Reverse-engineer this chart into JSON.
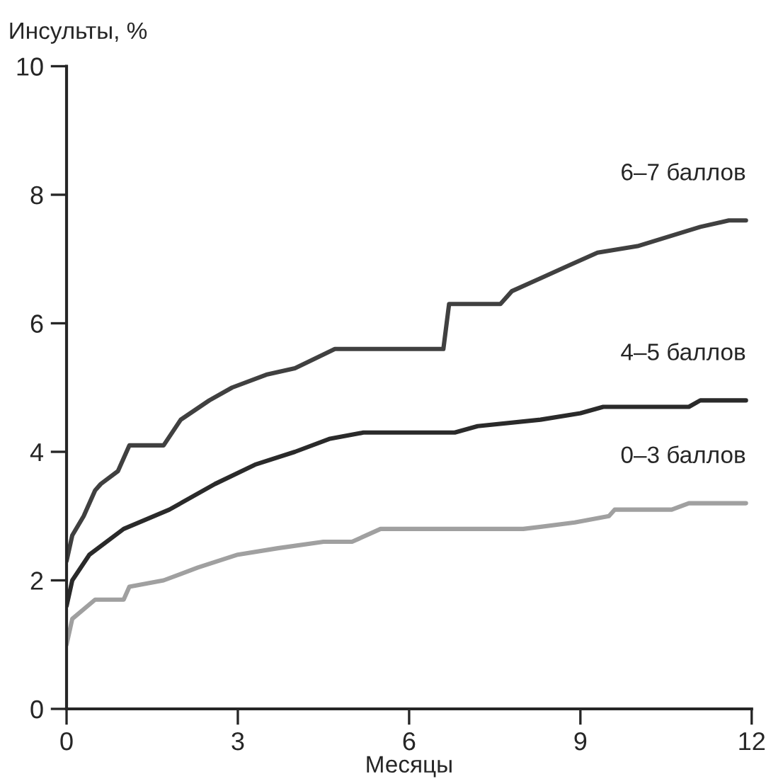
{
  "chart_data": {
    "type": "line",
    "ylabel": "Инсульты, %",
    "xlabel": "Месяцы",
    "xlim": [
      0,
      12
    ],
    "xticks": [
      0,
      3,
      6,
      9,
      12
    ],
    "ylim": [
      0,
      10
    ],
    "yticks": [
      0,
      2,
      4,
      6,
      8,
      10
    ],
    "grid": false,
    "legend": false,
    "marker": "none",
    "line_style": "solid",
    "series": [
      {
        "name": "6–7 баллов",
        "color": "#404040",
        "x": [
          0,
          0.1,
          0.3,
          0.5,
          0.6,
          0.9,
          1.1,
          1.7,
          2.0,
          2.5,
          2.9,
          3.5,
          4.0,
          4.7,
          6.6,
          6.7,
          7.6,
          7.8,
          8.3,
          8.8,
          9.3,
          10.0,
          11.1,
          11.6,
          11.9
        ],
        "values": [
          2.3,
          2.7,
          3.0,
          3.4,
          3.5,
          3.7,
          4.1,
          4.1,
          4.5,
          4.8,
          5.0,
          5.2,
          5.3,
          5.6,
          5.6,
          6.3,
          6.3,
          6.5,
          6.7,
          6.9,
          7.1,
          7.2,
          7.5,
          7.6,
          7.6
        ]
      },
      {
        "name": "4–5 баллов",
        "color": "#2a2a2a",
        "x": [
          0,
          0.1,
          0.4,
          1.0,
          1.8,
          2.6,
          3.3,
          4.0,
          4.6,
          5.2,
          6.8,
          7.2,
          8.3,
          9.0,
          9.4,
          10.9,
          11.1,
          11.9
        ],
        "values": [
          1.6,
          2.0,
          2.4,
          2.8,
          3.1,
          3.5,
          3.8,
          4.0,
          4.2,
          4.3,
          4.3,
          4.4,
          4.5,
          4.6,
          4.7,
          4.7,
          4.8,
          4.8
        ]
      },
      {
        "name": "0–3 баллов",
        "color": "#a0a0a0",
        "x": [
          0,
          0.1,
          0.5,
          1.0,
          1.1,
          1.7,
          2.3,
          3.0,
          3.7,
          4.5,
          5.0,
          5.5,
          8.0,
          8.9,
          9.5,
          9.6,
          10.6,
          10.9,
          11.9
        ],
        "values": [
          1.0,
          1.4,
          1.7,
          1.7,
          1.9,
          2.0,
          2.2,
          2.4,
          2.5,
          2.6,
          2.6,
          2.8,
          2.8,
          2.9,
          3.0,
          3.1,
          3.1,
          3.2,
          3.2
        ]
      }
    ]
  }
}
